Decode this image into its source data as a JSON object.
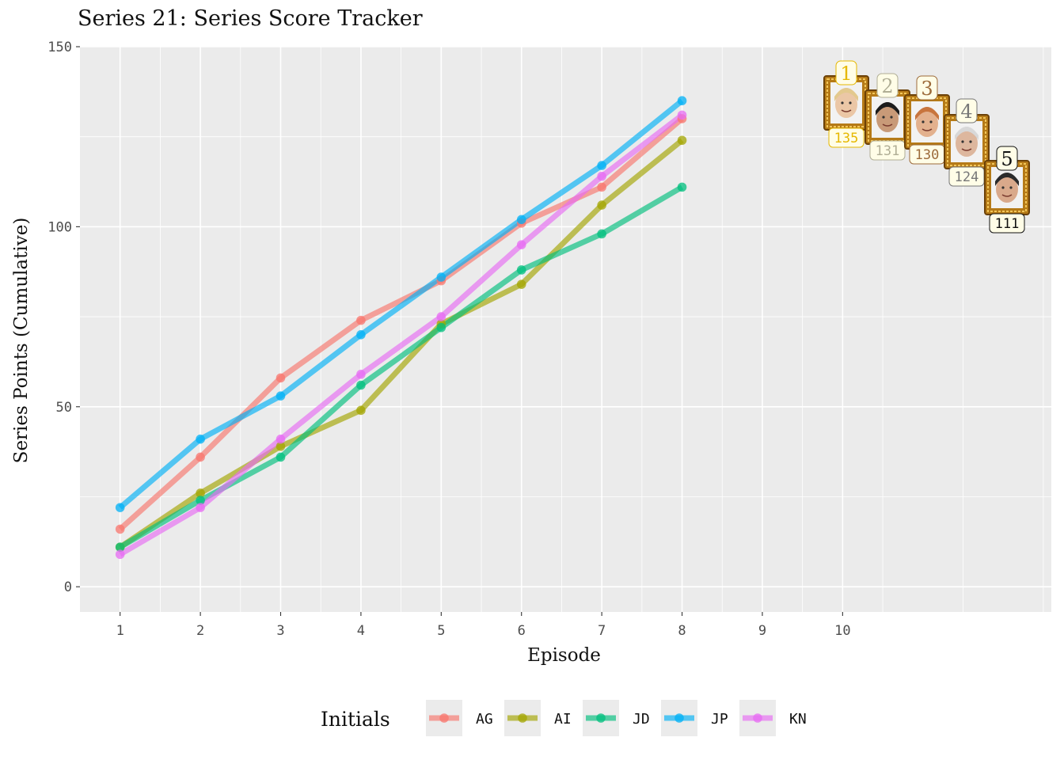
{
  "title": "Series 21: Series Score Tracker",
  "chart_data": {
    "type": "line",
    "title": "Series 21: Series Score Tracker",
    "xlabel": "Episode",
    "ylabel": "Series Points (Cumulative)",
    "x": [
      1,
      2,
      3,
      4,
      5,
      6,
      7,
      8
    ],
    "x_ticks": [
      "1",
      "2",
      "3",
      "4",
      "5",
      "6",
      "7",
      "8",
      "9",
      "10"
    ],
    "y_ticks": [
      "0",
      "50",
      "100",
      "150"
    ],
    "xlim": [
      0.5,
      12.6
    ],
    "ylim": [
      -7,
      150
    ],
    "grid": true,
    "legend_title": "Initials",
    "legend_position": "bottom",
    "series": [
      {
        "name": "AG",
        "color": "#F8766D",
        "values": [
          16,
          36,
          58,
          74,
          85,
          101,
          111,
          130
        ]
      },
      {
        "name": "AI",
        "color": "#A3A500",
        "values": [
          11,
          26,
          39,
          49,
          73,
          84,
          106,
          124
        ]
      },
      {
        "name": "JD",
        "color": "#00BF7D",
        "values": [
          11,
          24,
          36,
          56,
          72,
          88,
          98,
          111
        ]
      },
      {
        "name": "JP",
        "color": "#00B0F6",
        "values": [
          22,
          41,
          53,
          70,
          86,
          102,
          117,
          135
        ]
      },
      {
        "name": "KN",
        "color": "#E76BF3",
        "values": [
          9,
          22,
          41,
          59,
          75,
          95,
          114,
          131
        ]
      }
    ],
    "leaderboard": [
      {
        "rank": "1",
        "score": "135",
        "color": "#E6B800",
        "skin": "#EBC7A6",
        "hair": "#E3C98E"
      },
      {
        "rank": "2",
        "score": "131",
        "color": "#B0AE95",
        "skin": "#C89A78",
        "hair": "#1C1C1C"
      },
      {
        "rank": "3",
        "score": "130",
        "color": "#9C6A3A",
        "skin": "#E3B18E",
        "hair": "#C8753E"
      },
      {
        "rank": "4",
        "score": "124",
        "color": "#777777",
        "skin": "#DDB79E",
        "hair": "#D8D8D8"
      },
      {
        "rank": "5",
        "score": "111",
        "color": "#111111",
        "skin": "#D9A98B",
        "hair": "#2B2B2B"
      }
    ]
  }
}
